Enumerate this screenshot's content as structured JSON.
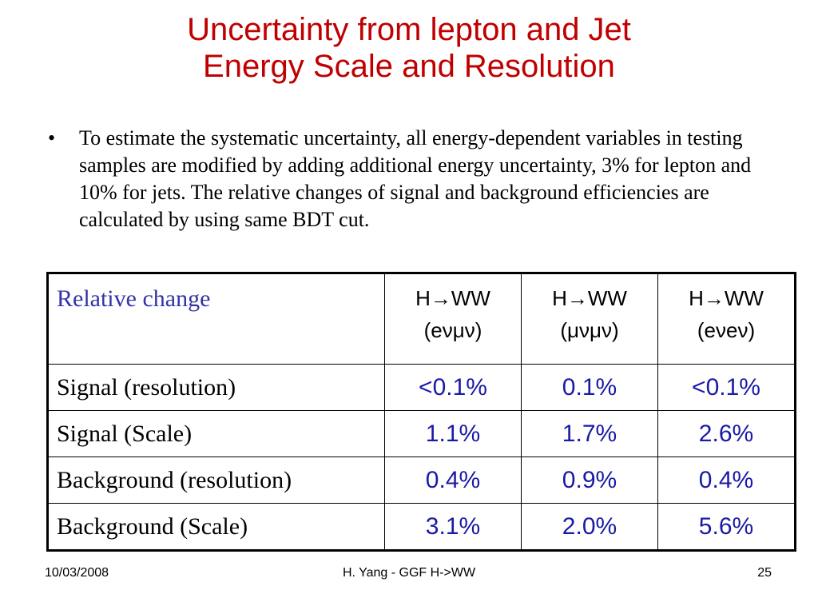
{
  "slide": {
    "title_line1": "Uncertainty from lepton and Jet",
    "title_line2": "Energy Scale and Resolution",
    "bullet_symbol": "•",
    "bullet_text": "To estimate the systematic uncertainty, all energy-dependent variables in testing samples are modified by adding additional energy uncertainty, 3% for lepton and 10% for jets. The relative changes of signal and background efficiencies are calculated by using same BDT cut."
  },
  "table": {
    "header": {
      "label": "Relative change",
      "columns": [
        {
          "line1": "H→WW",
          "line2": "(eνμν)"
        },
        {
          "line1": "H→WW",
          "line2": "(μνμν)"
        },
        {
          "line1": "H→WW",
          "line2": "(eνeν)"
        }
      ]
    },
    "rows": [
      {
        "label": "Signal (resolution)",
        "values": [
          "<0.1%",
          "0.1%",
          "<0.1%"
        ]
      },
      {
        "label": "Signal (Scale)",
        "values": [
          "1.1%",
          "1.7%",
          "2.6%"
        ]
      },
      {
        "label": "Background (resolution)",
        "values": [
          "0.4%",
          "0.9%",
          "0.4%"
        ]
      },
      {
        "label": "Background (Scale)",
        "values": [
          "3.1%",
          "2.0%",
          "5.6%"
        ]
      }
    ]
  },
  "footer": {
    "date": "10/03/2008",
    "center": "H. Yang - GGF H->WW",
    "page": "25"
  },
  "colors": {
    "title": "#c00000",
    "header_label": "#3333aa",
    "values": "#1a1aa6"
  }
}
